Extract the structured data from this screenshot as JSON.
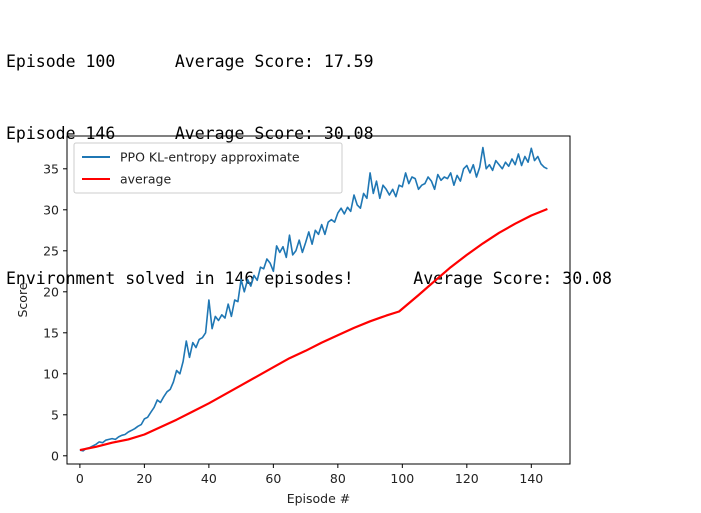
{
  "log": {
    "lines": [
      "Episode 100      Average Score: 17.59",
      "Episode 146      Average Score: 30.08"
    ],
    "solved": "Environment solved in 146 episodes!      Average Score: 30.08"
  },
  "chart_data": {
    "type": "line",
    "xlabel": "Episode #",
    "ylabel": "Score",
    "xlim": [
      -4,
      152
    ],
    "ylim": [
      -1,
      39
    ],
    "xticks": [
      0,
      20,
      40,
      60,
      80,
      100,
      120,
      140
    ],
    "yticks": [
      0,
      5,
      10,
      15,
      20,
      25,
      30,
      35
    ],
    "grid": false,
    "legend_position": "top-left",
    "series": [
      {
        "name": "PPO KL-entropy approximate",
        "color": "#1f77b4",
        "x": [
          0,
          1,
          2,
          3,
          4,
          5,
          6,
          7,
          8,
          9,
          10,
          11,
          12,
          13,
          14,
          15,
          16,
          17,
          18,
          19,
          20,
          21,
          22,
          23,
          24,
          25,
          26,
          27,
          28,
          29,
          30,
          31,
          32,
          33,
          34,
          35,
          36,
          37,
          38,
          39,
          40,
          41,
          42,
          43,
          44,
          45,
          46,
          47,
          48,
          49,
          50,
          51,
          52,
          53,
          54,
          55,
          56,
          57,
          58,
          59,
          60,
          61,
          62,
          63,
          64,
          65,
          66,
          67,
          68,
          69,
          70,
          71,
          72,
          73,
          74,
          75,
          76,
          77,
          78,
          79,
          80,
          81,
          82,
          83,
          84,
          85,
          86,
          87,
          88,
          89,
          90,
          91,
          92,
          93,
          94,
          95,
          96,
          97,
          98,
          99,
          100,
          101,
          102,
          103,
          104,
          105,
          106,
          107,
          108,
          109,
          110,
          111,
          112,
          113,
          114,
          115,
          116,
          117,
          118,
          119,
          120,
          121,
          122,
          123,
          124,
          125,
          126,
          127,
          128,
          129,
          130,
          131,
          132,
          133,
          134,
          135,
          136,
          137,
          138,
          139,
          140,
          141,
          142,
          143,
          144,
          145
        ],
        "values": [
          0.7,
          0.6,
          0.9,
          1.0,
          1.2,
          1.4,
          1.7,
          1.6,
          1.9,
          2.0,
          2.1,
          2.0,
          2.3,
          2.5,
          2.6,
          2.9,
          3.1,
          3.3,
          3.6,
          3.8,
          4.5,
          4.7,
          5.3,
          5.9,
          6.8,
          6.5,
          7.2,
          7.8,
          8.1,
          9.0,
          10.4,
          10.0,
          11.5,
          14.0,
          12.0,
          13.8,
          13.2,
          14.2,
          14.4,
          15.0,
          19.0,
          15.5,
          17.0,
          16.5,
          17.2,
          16.8,
          18.5,
          17.0,
          19.0,
          18.8,
          21.5,
          20.0,
          21.5,
          20.7,
          22.0,
          21.4,
          23.0,
          22.8,
          24.0,
          23.5,
          22.5,
          25.6,
          24.8,
          25.5,
          24.2,
          26.9,
          24.5,
          25.0,
          26.3,
          24.8,
          26.0,
          27.3,
          25.8,
          27.5,
          27.0,
          28.2,
          27.0,
          28.5,
          28.8,
          28.5,
          29.6,
          30.2,
          29.5,
          30.3,
          29.8,
          31.8,
          30.6,
          30.2,
          32.0,
          31.4,
          34.5,
          32.0,
          33.5,
          31.4,
          33.0,
          32.5,
          31.8,
          32.5,
          31.6,
          33.0,
          32.8,
          34.5,
          33.2,
          34.0,
          33.8,
          32.5,
          33.0,
          33.2,
          34.0,
          33.5,
          32.5,
          34.3,
          33.6,
          34.0,
          33.8,
          34.5,
          33.0,
          34.2,
          33.5,
          35.0,
          35.4,
          34.5,
          35.5,
          34.0,
          35.2,
          37.6,
          35.0,
          35.5,
          34.8,
          36.0,
          35.5,
          35.0,
          35.8,
          35.3,
          36.2,
          35.5,
          36.8,
          35.4,
          36.5,
          35.8,
          37.5,
          36.0,
          36.5,
          35.6,
          35.2,
          35.0
        ]
      },
      {
        "name": "average",
        "color": "#ff0000",
        "x": [
          0,
          5,
          10,
          15,
          20,
          25,
          30,
          35,
          40,
          45,
          50,
          55,
          60,
          65,
          70,
          75,
          80,
          85,
          90,
          95,
          99,
          105,
          110,
          115,
          120,
          125,
          130,
          135,
          140,
          145
        ],
        "values": [
          0.7,
          1.1,
          1.6,
          2.0,
          2.6,
          3.5,
          4.4,
          5.4,
          6.4,
          7.5,
          8.6,
          9.7,
          10.8,
          11.9,
          12.8,
          13.8,
          14.7,
          15.6,
          16.4,
          17.1,
          17.6,
          19.6,
          21.3,
          23.0,
          24.5,
          25.9,
          27.2,
          28.3,
          29.3,
          30.1
        ]
      }
    ]
  }
}
